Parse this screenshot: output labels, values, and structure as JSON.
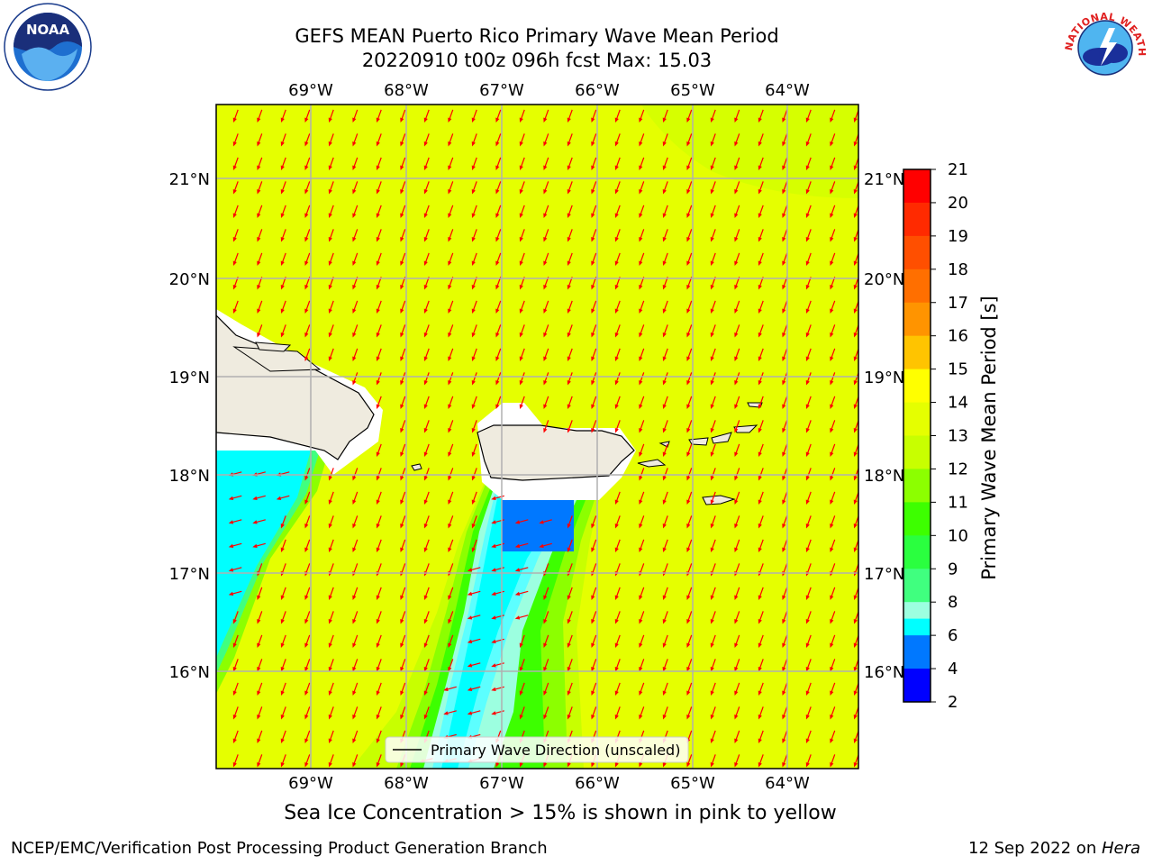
{
  "title": {
    "line1": "GEFS MEAN Puerto Rico Primary Wave Mean Period",
    "line2": "20220910 t00z 096h fcst   Max: 15.03"
  },
  "map": {
    "lon_labels": [
      "69°W",
      "68°W",
      "67°W",
      "66°W",
      "65°W",
      "64°W"
    ],
    "lat_labels": [
      "21°N",
      "20°N",
      "19°N",
      "18°N",
      "17°N",
      "16°N"
    ],
    "land_color": "#efebdf",
    "background_period_color": "#e5ff00",
    "arrow_color": "#ff0000",
    "legend_label": "Primary Wave Direction (unscaled)"
  },
  "colorbar": {
    "label": "Primary Wave Mean Period [s]",
    "ticks": [
      "21",
      "20",
      "19",
      "18",
      "17",
      "16",
      "15",
      "14",
      "13",
      "12",
      "11",
      "10",
      "9",
      "8",
      "6",
      "4",
      "2"
    ],
    "colors": [
      "#ff0000",
      "#ff2a00",
      "#ff4f00",
      "#ff6f00",
      "#ff9400",
      "#ffc400",
      "#ffff00",
      "#e5ff00",
      "#c8ff00",
      "#8cff00",
      "#3dff00",
      "#2aff3f",
      "#40ff7f",
      "#9cffe0",
      "#5cffff",
      "#00ffff",
      "#0078ff",
      "#0000ff"
    ]
  },
  "caption": "Sea Ice Concentration > 15% is shown in pink to yellow",
  "footer": {
    "left": "NCEP/EMC/Verification Post Processing Product Generation Branch",
    "right_prefix": "12 Sep 2022 on ",
    "right_host": "Hera"
  },
  "logos": {
    "noaa_text": "NOAA",
    "nws_text": "NATIONAL WEATHER SERVICE"
  }
}
